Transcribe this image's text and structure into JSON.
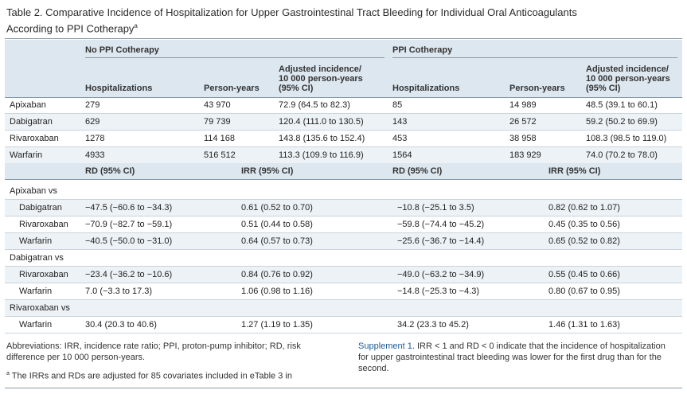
{
  "title_line1": "Table 2. Comparative Incidence of Hospitalization for Upper Gastrointestinal Tract Bleeding for Individual Oral Anticoagulants",
  "title_line2": "According to PPI Cotherapy",
  "title_sup": "a",
  "group_no_ppi": "No PPI Cotherapy",
  "group_ppi": "PPI Cotherapy",
  "col_hosp": "Hospitalizations",
  "col_py": "Person-years",
  "col_inc_1": "Adjusted incidence/",
  "col_inc_2": "10 000 person-years",
  "col_inc_3": "(95% CI)",
  "incidence_rows": [
    {
      "drug": "Apixaban",
      "h1": "279",
      "py1": "43 970",
      "inc1": "72.9 (64.5 to 82.3)",
      "h2": "85",
      "py2": "14 989",
      "inc2": "48.5 (39.1 to 60.1)"
    },
    {
      "drug": "Dabigatran",
      "h1": "629",
      "py1": "79 739",
      "inc1": "120.4 (111.0 to 130.5)",
      "h2": "143",
      "py2": "26 572",
      "inc2": "59.2 (50.2 to 69.9)"
    },
    {
      "drug": "Rivaroxaban",
      "h1": "1278",
      "py1": "114 168",
      "inc1": "143.8 (135.6 to 152.4)",
      "h2": "453",
      "py2": "38 958",
      "inc2": "108.3 (98.5 to 119.0)"
    },
    {
      "drug": "Warfarin",
      "h1": "4933",
      "py1": "516 512",
      "inc1": "113.3 (109.9 to 116.9)",
      "h2": "1564",
      "py2": "183 929",
      "inc2": "74.0 (70.2 to 78.0)"
    }
  ],
  "sub_rd": "RD (95% CI)",
  "sub_irr": "IRR (95% CI)",
  "comparisons": [
    {
      "label": "Apixaban vs",
      "rows": [
        {
          "drug": "Dabigatran",
          "rd1": "−47.5 (−60.6 to −34.3)",
          "irr1": "0.61 (0.52 to 0.70)",
          "rd2": "−10.8 (−25.1 to 3.5)",
          "irr2": "0.82 (0.62 to 1.07)"
        },
        {
          "drug": "Rivaroxaban",
          "rd1": "−70.9 (−82.7 to −59.1)",
          "irr1": "0.51 (0.44 to 0.58)",
          "rd2": "−59.8 (−74.4 to −45.2)",
          "irr2": "0.45 (0.35 to 0.56)"
        },
        {
          "drug": "Warfarin",
          "rd1": "−40.5 (−50.0 to −31.0)",
          "irr1": "0.64 (0.57 to 0.73)",
          "rd2": "−25.6 (−36.7 to −14.4)",
          "irr2": "0.65 (0.52 to 0.82)"
        }
      ]
    },
    {
      "label": "Dabigatran vs",
      "rows": [
        {
          "drug": "Rivaroxaban",
          "rd1": "−23.4 (−36.2 to −10.6)",
          "irr1": "0.84 (0.76 to 0.92)",
          "rd2": "−49.0 (−63.2 to −34.9)",
          "irr2": "0.55 (0.45 to 0.66)"
        },
        {
          "drug": "Warfarin",
          "rd1": "7.0 (−3.3 to 17.3)",
          "irr1": "1.06 (0.98 to 1.16)",
          "rd2": "−14.8 (−25.3 to −4.3)",
          "irr2": "0.80 (0.67 to 0.95)"
        }
      ]
    },
    {
      "label": "Rivaroxaban vs",
      "rows": [
        {
          "drug": "Warfarin",
          "rd1": "30.4 (20.3 to 40.6)",
          "irr1": "1.27 (1.19 to 1.35)",
          "rd2": "34.2 (23.3 to 45.2)",
          "irr2": "1.46 (1.31 to 1.63)"
        }
      ]
    }
  ],
  "footnote_abbrev": "Abbreviations: IRR, incidence rate ratio; PPI, proton-pump inhibitor; RD, risk difference per 10 000 person-years.",
  "footnote_a_sup": "a",
  "footnote_a": " The IRRs and RDs are adjusted for 85 covariates included in eTable 3 in",
  "footnote_link": "Supplement 1",
  "footnote_right": ". IRR < 1 and RD < 0 indicate that the incidence of hospitalization for upper gastrointestinal tract bleeding was lower for the first drug than for the second.",
  "colors": {
    "header_bg": "#dde7ef",
    "alt_row_bg": "#edf2f6",
    "link": "#1a5a96"
  }
}
